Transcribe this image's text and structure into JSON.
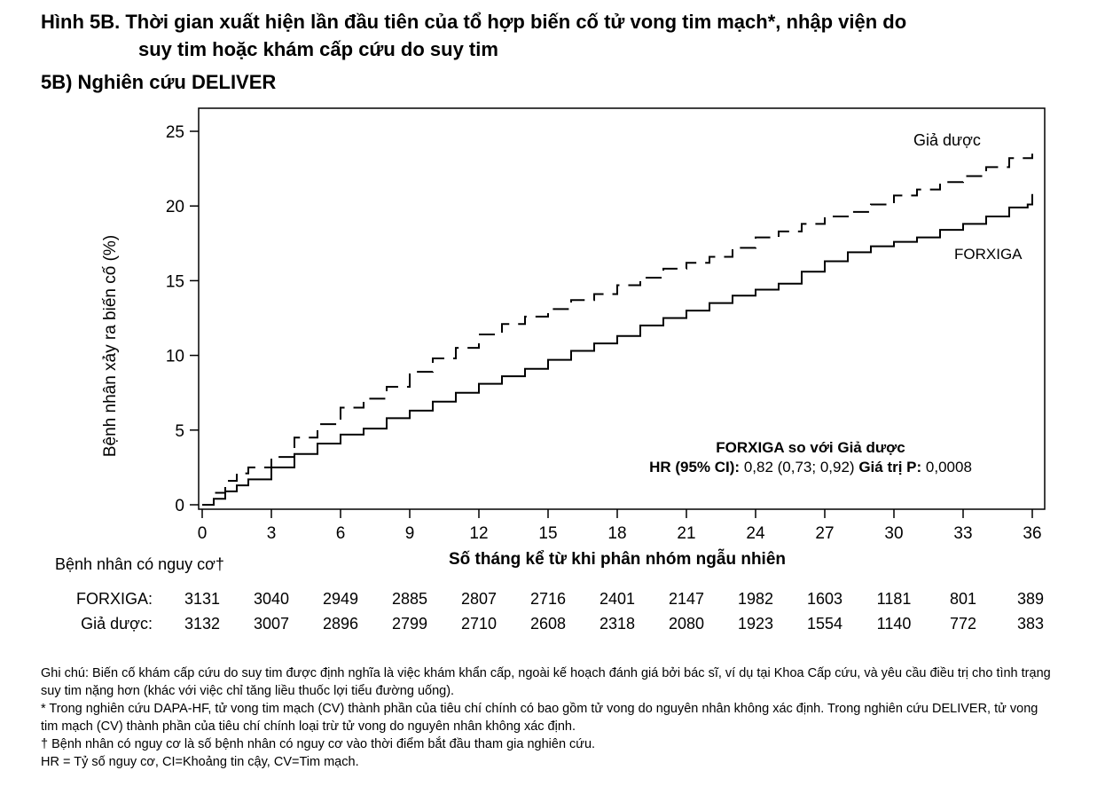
{
  "title_line1": "Hình 5B. Thời gian xuất hiện lần đầu tiên của tổ hợp biến cố tử vong tim mạch*, nhập viện do",
  "title_line2": "suy tim hoặc khám cấp cứu do suy tim",
  "subtitle": "5B) Nghiên cứu DELIVER",
  "chart_data": {
    "type": "line",
    "xlabel": "Số tháng kể từ khi phân nhóm ngẫu nhiên",
    "ylabel": "Bệnh nhân xảy ra biến cố (%)",
    "xlim": [
      0,
      36
    ],
    "ylim": [
      0,
      25
    ],
    "xticks": [
      0,
      3,
      6,
      9,
      12,
      15,
      18,
      21,
      24,
      27,
      30,
      33,
      36
    ],
    "yticks": [
      0,
      5,
      10,
      15,
      20,
      25
    ],
    "grid": false,
    "series": [
      {
        "name": "Giả dược",
        "style": "dashed",
        "x": [
          0,
          0.5,
          1,
          1.5,
          2,
          3,
          4,
          5,
          6,
          7,
          8,
          9,
          10,
          11,
          12,
          13,
          14,
          15,
          16,
          17,
          18,
          19,
          20,
          21,
          22,
          23,
          24,
          25,
          26,
          27,
          28,
          29,
          30,
          31,
          32,
          33,
          34,
          35,
          36
        ],
        "y": [
          0,
          0.8,
          1.6,
          2.1,
          2.5,
          3.2,
          4.5,
          5.4,
          6.5,
          7.1,
          7.9,
          8.9,
          9.8,
          10.5,
          11.4,
          12.1,
          12.6,
          13.1,
          13.7,
          14.1,
          14.7,
          15.2,
          15.8,
          16.2,
          16.6,
          17.2,
          17.9,
          18.3,
          18.8,
          19.3,
          19.6,
          20.1,
          20.7,
          21.1,
          21.6,
          22.0,
          22.6,
          23.2,
          23.5
        ]
      },
      {
        "name": "FORXIGA",
        "style": "solid",
        "x": [
          0,
          0.5,
          1,
          1.5,
          2,
          3,
          4,
          5,
          6,
          7,
          8,
          9,
          10,
          11,
          12,
          13,
          14,
          15,
          16,
          17,
          18,
          19,
          20,
          21,
          22,
          23,
          24,
          25,
          26,
          27,
          28,
          29,
          30,
          31,
          32,
          33,
          34,
          35,
          35.8,
          36
        ],
        "y": [
          0,
          0.4,
          0.9,
          1.3,
          1.7,
          2.5,
          3.4,
          4.1,
          4.7,
          5.1,
          5.8,
          6.3,
          6.9,
          7.5,
          8.1,
          8.6,
          9.1,
          9.7,
          10.3,
          10.8,
          11.3,
          12.0,
          12.5,
          13.0,
          13.5,
          14.0,
          14.4,
          14.8,
          15.6,
          16.3,
          16.9,
          17.3,
          17.6,
          17.9,
          18.4,
          18.8,
          19.3,
          19.9,
          20.1,
          20.8
        ]
      }
    ],
    "annotations": {
      "hr_title": "FORXIGA so với Giả dược",
      "hr_bold1": "HR (95% CI):",
      "hr_val1": "0,82 (0,73; 0,92)",
      "hr_bold2": "Giá trị P:",
      "hr_val2": "0,0008"
    },
    "risk_table": {
      "header": "Bệnh nhân có nguy cơ†",
      "rows": [
        {
          "label": "FORXIGA:",
          "values": [
            "3131",
            "3040",
            "2949",
            "2885",
            "2807",
            "2716",
            "2401",
            "2147",
            "1982",
            "1603",
            "1181",
            "801",
            "389"
          ]
        },
        {
          "label": "Giả dược:",
          "values": [
            "3132",
            "3007",
            "2896",
            "2799",
            "2710",
            "2608",
            "2318",
            "2080",
            "1923",
            "1554",
            "1140",
            "772",
            "383"
          ]
        }
      ]
    }
  },
  "notes": [
    "Ghi chú: Biến cố khám cấp cứu do suy tim được định nghĩa là việc khám khẩn cấp, ngoài kế hoạch đánh giá bởi bác sĩ, ví dụ tại Khoa Cấp cứu, và yêu cầu điều trị cho tình trạng suy tim nặng hơn (khác với việc chỉ tăng liều thuốc lợi tiểu đường uống).",
    "* Trong nghiên cứu DAPA-HF, tử vong tim mạch (CV) thành phần của tiêu chí chính có bao gồm tử vong do nguyên nhân không xác định. Trong nghiên cứu DELIVER, tử vong tim mạch (CV) thành phần của tiêu chí chính loại trừ tử vong do nguyên nhân không xác định.",
    "† Bệnh nhân có nguy cơ là số bệnh nhân có nguy cơ vào thời điểm bắt đầu tham gia nghiên cứu.",
    "HR = Tỷ số nguy cơ, CI=Khoảng tin cậy, CV=Tim mạch."
  ]
}
